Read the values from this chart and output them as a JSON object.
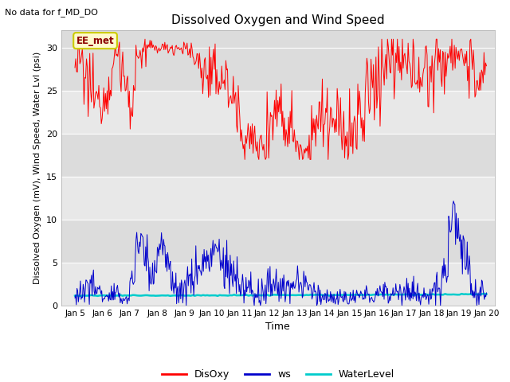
{
  "title": "Dissolved Oxygen and Wind Speed",
  "subtitle": "No data for f_MD_DO",
  "xlabel": "Time",
  "ylabel": "Dissolved Oxygen (mV), Wind Speed, Water Lvl (psi)",
  "annotation": "EE_met",
  "xlim": [
    4.5,
    20.3
  ],
  "ylim": [
    0,
    32
  ],
  "yticks": [
    0,
    5,
    10,
    15,
    20,
    25,
    30
  ],
  "xtick_labels": [
    "Jan 5",
    "Jan 6",
    "Jan 7",
    "Jan 8",
    "Jan 9",
    "Jan 10",
    "Jan 11",
    "Jan 12",
    "Jan 13",
    "Jan 14",
    "Jan 15",
    "Jan 16",
    "Jan 17",
    "Jan 18",
    "Jan 19",
    "Jan 20"
  ],
  "xtick_positions": [
    5,
    6,
    7,
    8,
    9,
    10,
    11,
    12,
    13,
    14,
    15,
    16,
    17,
    18,
    19,
    20
  ],
  "do_color": "#FF0000",
  "ws_color": "#0000CC",
  "wl_color": "#00CCCC",
  "bg_color": "#DCDCDC",
  "stripe_color": "#E8E8E8",
  "legend_entries": [
    "DisOxy",
    "ws",
    "WaterLevel"
  ],
  "figsize": [
    6.4,
    4.8
  ],
  "dpi": 100
}
